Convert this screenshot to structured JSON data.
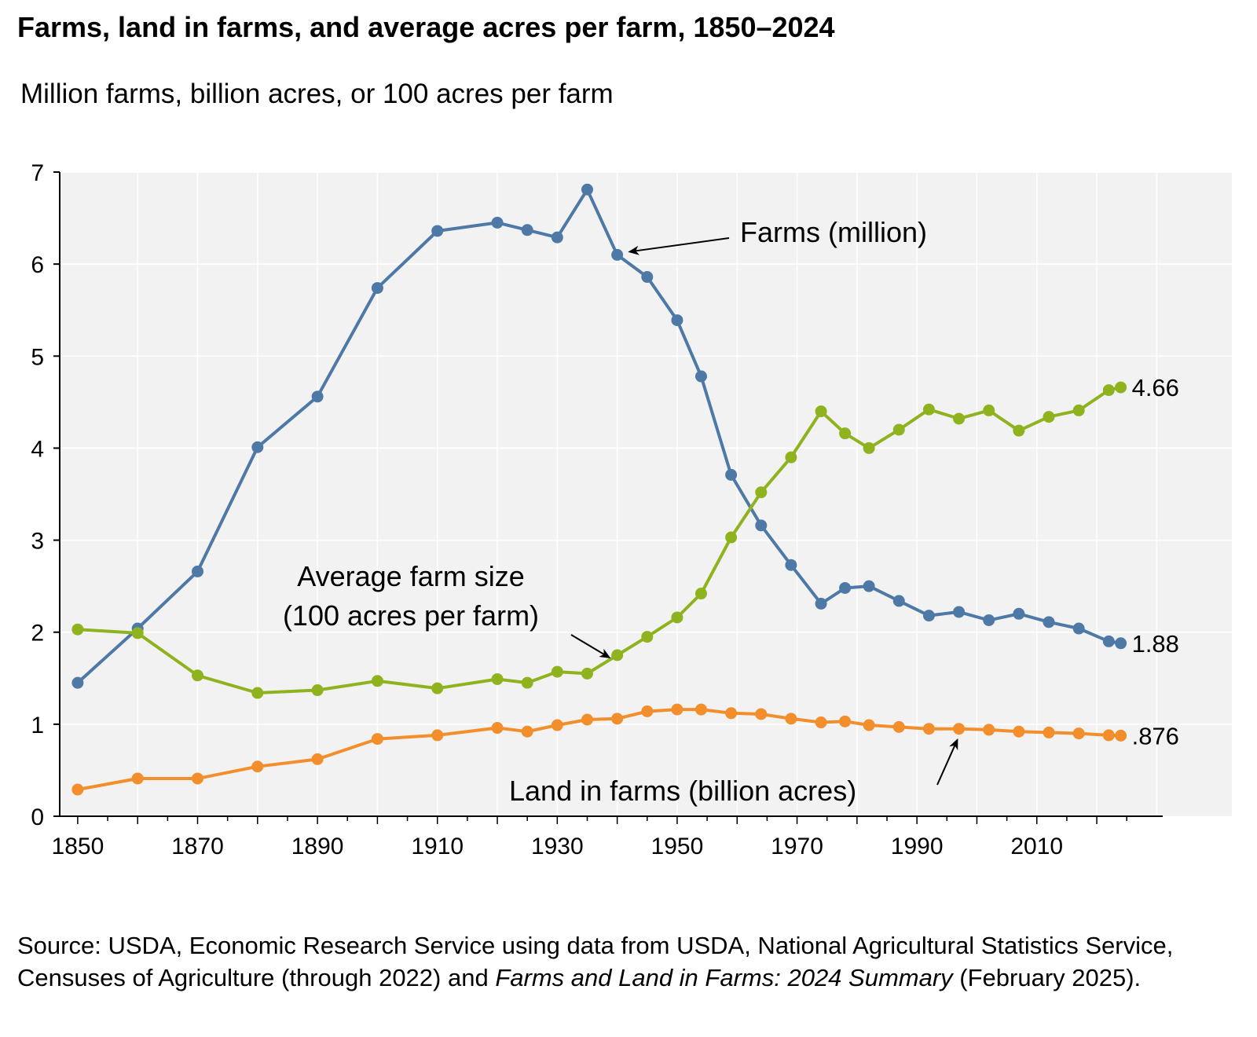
{
  "title": "Farms, land in farms, and average acres per farm, 1850–2024",
  "subtitle": "Million farms, billion acres, or 100 acres per farm",
  "source": {
    "prefix": "Source: USDA, Economic Research Service using data from USDA, National Agricultural Statistics Service, Censuses of Agriculture (through 2022) and ",
    "italic": "Farms and Land in Farms: 2024 Summary",
    "suffix": " (February 2025)."
  },
  "chart_data": {
    "type": "line",
    "xlim": [
      1847,
      2031
    ],
    "ylim": [
      0,
      7
    ],
    "xticks": [
      1850,
      1870,
      1890,
      1910,
      1930,
      1950,
      1970,
      1990,
      2010
    ],
    "xtick_labels": [
      "1850",
      "1870",
      "1890",
      "1910",
      "1930",
      "1950",
      "1970",
      "1990",
      "2010"
    ],
    "yticks": [
      0,
      1,
      2,
      3,
      4,
      5,
      6,
      7
    ],
    "ytick_labels": [
      "0",
      "1",
      "2",
      "3",
      "4",
      "5",
      "6",
      "7"
    ],
    "grid": true,
    "background": "#f2f2f2",
    "series": [
      {
        "key": "farms",
        "name": "Farms (million)",
        "color": "#4e79a7",
        "end_label": "1.88",
        "x": [
          1850,
          1860,
          1870,
          1880,
          1890,
          1900,
          1910,
          1920,
          1925,
          1930,
          1935,
          1940,
          1945,
          1950,
          1954,
          1959,
          1964,
          1969,
          1974,
          1978,
          1982,
          1987,
          1992,
          1997,
          2002,
          2007,
          2012,
          2017,
          2022,
          2024
        ],
        "values": [
          1.45,
          2.04,
          2.66,
          4.01,
          4.56,
          5.74,
          6.36,
          6.45,
          6.37,
          6.29,
          6.81,
          6.1,
          5.86,
          5.39,
          4.78,
          3.71,
          3.16,
          2.73,
          2.31,
          2.48,
          2.5,
          2.34,
          2.18,
          2.22,
          2.13,
          2.2,
          2.11,
          2.04,
          1.9,
          1.88
        ]
      },
      {
        "key": "size",
        "name": "Average farm size (100 acres per farm)",
        "color": "#8fb31e",
        "end_label": "4.66",
        "x": [
          1850,
          1860,
          1870,
          1880,
          1890,
          1900,
          1910,
          1920,
          1925,
          1930,
          1935,
          1940,
          1945,
          1950,
          1954,
          1959,
          1964,
          1969,
          1974,
          1978,
          1982,
          1987,
          1992,
          1997,
          2002,
          2007,
          2012,
          2017,
          2022,
          2024
        ],
        "values": [
          2.03,
          1.99,
          1.53,
          1.34,
          1.37,
          1.47,
          1.39,
          1.49,
          1.45,
          1.57,
          1.55,
          1.75,
          1.95,
          2.16,
          2.42,
          3.03,
          3.52,
          3.9,
          4.4,
          4.16,
          4.0,
          4.2,
          4.42,
          4.32,
          4.41,
          4.19,
          4.34,
          4.41,
          4.63,
          4.66
        ]
      },
      {
        "key": "land",
        "name": "Land in farms (billion acres)",
        "color": "#f28e2b",
        "end_label": ".876",
        "x": [
          1850,
          1860,
          1870,
          1880,
          1890,
          1900,
          1910,
          1920,
          1925,
          1930,
          1935,
          1940,
          1945,
          1950,
          1954,
          1959,
          1964,
          1969,
          1974,
          1978,
          1982,
          1987,
          1992,
          1997,
          2002,
          2007,
          2012,
          2017,
          2022,
          2024
        ],
        "values": [
          0.29,
          0.41,
          0.41,
          0.54,
          0.62,
          0.84,
          0.88,
          0.96,
          0.92,
          0.99,
          1.05,
          1.06,
          1.14,
          1.16,
          1.16,
          1.12,
          1.11,
          1.06,
          1.02,
          1.03,
          0.99,
          0.97,
          0.95,
          0.95,
          0.94,
          0.92,
          0.91,
          0.9,
          0.88,
          0.876
        ]
      }
    ],
    "annotations": {
      "farms": "Farms (million)",
      "size_line1": "Average farm size",
      "size_line2": "(100 acres per farm)",
      "land": "Land in farms (billion acres)"
    }
  }
}
